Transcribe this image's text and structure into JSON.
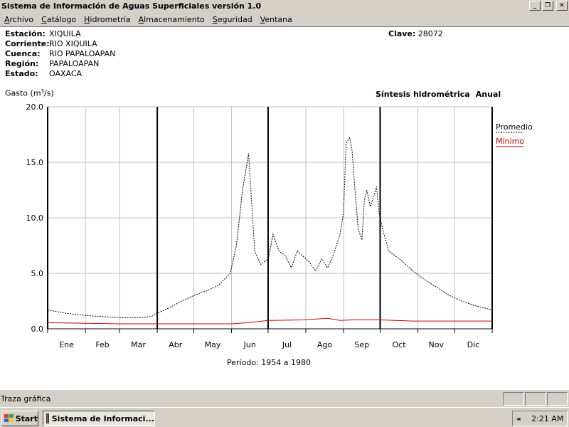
{
  "window": {
    "title": "Sistema de Información de Aguas Superficiales  versión 1.0"
  },
  "menu": [
    {
      "label": "Archivo",
      "key": "A"
    },
    {
      "label": "Catálogo",
      "key": "C"
    },
    {
      "label": "Hidrometría",
      "key": "H"
    },
    {
      "label": "Almacenamiento",
      "key": "A"
    },
    {
      "label": "Seguridad",
      "key": "S"
    },
    {
      "label": "Ventana",
      "key": "V"
    }
  ],
  "station": {
    "estacion_label": "Estación:",
    "estacion": "XIQUILA",
    "corriente_label": "Corriente:",
    "corriente": "RIO XIQUILA",
    "cuenca_label": "Cuenca:",
    "cuenca": "RIO PAPALOAPAN",
    "region_label": "Región:",
    "region": "PAPALOAPAN",
    "estado_label": "Estado:",
    "estado": "OAXACA",
    "clave_label": "Clave:",
    "clave": "28072"
  },
  "chart_header": {
    "ylabel_pre": "Gasto (m",
    "ylabel_sup": "3",
    "ylabel_post": "/s)",
    "synth_title": "Síntesis hidrométrica",
    "synth_period": "Anual"
  },
  "periodo": "Período:  1954 a 1980",
  "chart_data": {
    "type": "line",
    "ylim": [
      0,
      20
    ],
    "yticks": [
      "0.0",
      "5.0",
      "10.0",
      "15.0",
      "20.0"
    ],
    "months": [
      "Ene",
      "Feb",
      "Mar",
      "Abr",
      "May",
      "Jun",
      "Jul",
      "Ago",
      "Sep",
      "Oct",
      "Nov",
      "Dic"
    ],
    "legend": [
      {
        "name": "Promedio",
        "color": "#000000",
        "style": "dashed"
      },
      {
        "name": "Mínimo",
        "color": "#cc0000",
        "style": "solid"
      }
    ],
    "series": [
      {
        "name": "Promedio",
        "x_day": [
          0,
          15,
          31,
          45,
          59,
          74,
          85,
          90,
          100,
          110,
          120,
          130,
          140,
          150,
          155,
          160,
          165,
          170,
          175,
          180,
          181,
          185,
          190,
          195,
          200,
          205,
          210,
          215,
          220,
          225,
          230,
          235,
          240,
          243,
          245,
          248,
          250,
          252,
          255,
          258,
          260,
          262,
          265,
          268,
          270,
          272,
          275,
          280,
          290,
          300,
          310,
          320,
          330,
          340,
          350,
          365
        ],
        "values": [
          1.7,
          1.4,
          1.2,
          1.1,
          1.0,
          1.0,
          1.1,
          1.4,
          1.9,
          2.5,
          3.0,
          3.4,
          3.9,
          5.0,
          7.5,
          12.5,
          15.8,
          7.0,
          5.8,
          6.2,
          6.2,
          8.5,
          7.0,
          6.6,
          5.5,
          7.0,
          6.5,
          6.0,
          5.2,
          6.3,
          5.5,
          6.8,
          8.5,
          10.5,
          16.7,
          17.2,
          16.0,
          13.0,
          9.0,
          8.0,
          11.5,
          12.5,
          11.0,
          12.0,
          12.8,
          10.5,
          9.0,
          7.0,
          6.2,
          5.2,
          4.4,
          3.7,
          3.0,
          2.5,
          2.1,
          1.7
        ]
      },
      {
        "name": "Mínimo",
        "x_day": [
          0,
          31,
          59,
          90,
          120,
          151,
          165,
          181,
          210,
          230,
          240,
          250,
          273,
          300,
          334,
          365
        ],
        "values": [
          0.55,
          0.5,
          0.45,
          0.45,
          0.45,
          0.45,
          0.55,
          0.75,
          0.8,
          0.95,
          0.75,
          0.8,
          0.8,
          0.7,
          0.7,
          0.7
        ]
      }
    ]
  },
  "statusbar": {
    "text": "Traza gráfica"
  },
  "taskbar": {
    "start": "Start",
    "task": "Sistema de Informaci...",
    "tray_chevron": "«",
    "clock": "2:21 AM"
  },
  "colors": {
    "window_bg": "#d4d0c8",
    "plot_grid": "#c0c0c0",
    "minimo": "#cc0000"
  }
}
